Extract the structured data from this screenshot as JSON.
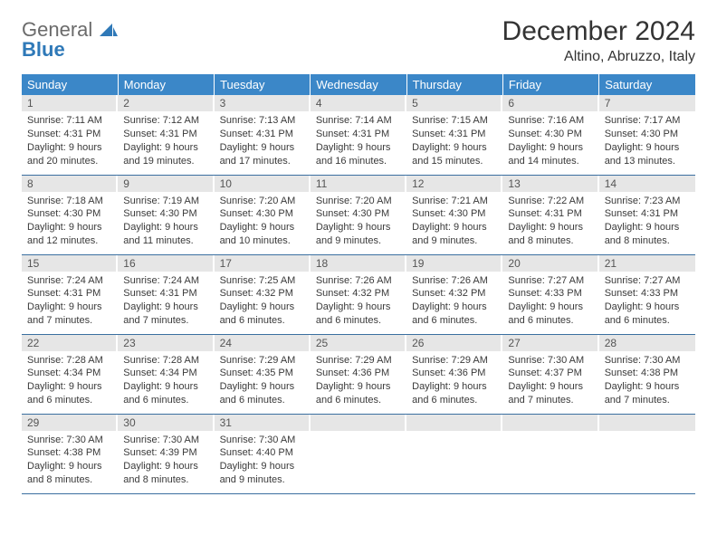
{
  "logo": {
    "line1": "General",
    "line2": "Blue"
  },
  "title": "December 2024",
  "subtitle": "Altino, Abruzzo, Italy",
  "colors": {
    "header_bg": "#3b87c8",
    "header_text": "#ffffff",
    "daynum_bg": "#e6e6e6",
    "daynum_text": "#555555",
    "body_text": "#3a3a3a",
    "row_border": "#3b6fa0",
    "logo_gray": "#6b6b6b",
    "logo_blue": "#2f79b8",
    "page_bg": "#ffffff"
  },
  "weekdays": [
    "Sunday",
    "Monday",
    "Tuesday",
    "Wednesday",
    "Thursday",
    "Friday",
    "Saturday"
  ],
  "weeks": [
    [
      {
        "n": "1",
        "sunrise": "Sunrise: 7:11 AM",
        "sunset": "Sunset: 4:31 PM",
        "day1": "Daylight: 9 hours",
        "day2": "and 20 minutes."
      },
      {
        "n": "2",
        "sunrise": "Sunrise: 7:12 AM",
        "sunset": "Sunset: 4:31 PM",
        "day1": "Daylight: 9 hours",
        "day2": "and 19 minutes."
      },
      {
        "n": "3",
        "sunrise": "Sunrise: 7:13 AM",
        "sunset": "Sunset: 4:31 PM",
        "day1": "Daylight: 9 hours",
        "day2": "and 17 minutes."
      },
      {
        "n": "4",
        "sunrise": "Sunrise: 7:14 AM",
        "sunset": "Sunset: 4:31 PM",
        "day1": "Daylight: 9 hours",
        "day2": "and 16 minutes."
      },
      {
        "n": "5",
        "sunrise": "Sunrise: 7:15 AM",
        "sunset": "Sunset: 4:31 PM",
        "day1": "Daylight: 9 hours",
        "day2": "and 15 minutes."
      },
      {
        "n": "6",
        "sunrise": "Sunrise: 7:16 AM",
        "sunset": "Sunset: 4:30 PM",
        "day1": "Daylight: 9 hours",
        "day2": "and 14 minutes."
      },
      {
        "n": "7",
        "sunrise": "Sunrise: 7:17 AM",
        "sunset": "Sunset: 4:30 PM",
        "day1": "Daylight: 9 hours",
        "day2": "and 13 minutes."
      }
    ],
    [
      {
        "n": "8",
        "sunrise": "Sunrise: 7:18 AM",
        "sunset": "Sunset: 4:30 PM",
        "day1": "Daylight: 9 hours",
        "day2": "and 12 minutes."
      },
      {
        "n": "9",
        "sunrise": "Sunrise: 7:19 AM",
        "sunset": "Sunset: 4:30 PM",
        "day1": "Daylight: 9 hours",
        "day2": "and 11 minutes."
      },
      {
        "n": "10",
        "sunrise": "Sunrise: 7:20 AM",
        "sunset": "Sunset: 4:30 PM",
        "day1": "Daylight: 9 hours",
        "day2": "and 10 minutes."
      },
      {
        "n": "11",
        "sunrise": "Sunrise: 7:20 AM",
        "sunset": "Sunset: 4:30 PM",
        "day1": "Daylight: 9 hours",
        "day2": "and 9 minutes."
      },
      {
        "n": "12",
        "sunrise": "Sunrise: 7:21 AM",
        "sunset": "Sunset: 4:30 PM",
        "day1": "Daylight: 9 hours",
        "day2": "and 9 minutes."
      },
      {
        "n": "13",
        "sunrise": "Sunrise: 7:22 AM",
        "sunset": "Sunset: 4:31 PM",
        "day1": "Daylight: 9 hours",
        "day2": "and 8 minutes."
      },
      {
        "n": "14",
        "sunrise": "Sunrise: 7:23 AM",
        "sunset": "Sunset: 4:31 PM",
        "day1": "Daylight: 9 hours",
        "day2": "and 8 minutes."
      }
    ],
    [
      {
        "n": "15",
        "sunrise": "Sunrise: 7:24 AM",
        "sunset": "Sunset: 4:31 PM",
        "day1": "Daylight: 9 hours",
        "day2": "and 7 minutes."
      },
      {
        "n": "16",
        "sunrise": "Sunrise: 7:24 AM",
        "sunset": "Sunset: 4:31 PM",
        "day1": "Daylight: 9 hours",
        "day2": "and 7 minutes."
      },
      {
        "n": "17",
        "sunrise": "Sunrise: 7:25 AM",
        "sunset": "Sunset: 4:32 PM",
        "day1": "Daylight: 9 hours",
        "day2": "and 6 minutes."
      },
      {
        "n": "18",
        "sunrise": "Sunrise: 7:26 AM",
        "sunset": "Sunset: 4:32 PM",
        "day1": "Daylight: 9 hours",
        "day2": "and 6 minutes."
      },
      {
        "n": "19",
        "sunrise": "Sunrise: 7:26 AM",
        "sunset": "Sunset: 4:32 PM",
        "day1": "Daylight: 9 hours",
        "day2": "and 6 minutes."
      },
      {
        "n": "20",
        "sunrise": "Sunrise: 7:27 AM",
        "sunset": "Sunset: 4:33 PM",
        "day1": "Daylight: 9 hours",
        "day2": "and 6 minutes."
      },
      {
        "n": "21",
        "sunrise": "Sunrise: 7:27 AM",
        "sunset": "Sunset: 4:33 PM",
        "day1": "Daylight: 9 hours",
        "day2": "and 6 minutes."
      }
    ],
    [
      {
        "n": "22",
        "sunrise": "Sunrise: 7:28 AM",
        "sunset": "Sunset: 4:34 PM",
        "day1": "Daylight: 9 hours",
        "day2": "and 6 minutes."
      },
      {
        "n": "23",
        "sunrise": "Sunrise: 7:28 AM",
        "sunset": "Sunset: 4:34 PM",
        "day1": "Daylight: 9 hours",
        "day2": "and 6 minutes."
      },
      {
        "n": "24",
        "sunrise": "Sunrise: 7:29 AM",
        "sunset": "Sunset: 4:35 PM",
        "day1": "Daylight: 9 hours",
        "day2": "and 6 minutes."
      },
      {
        "n": "25",
        "sunrise": "Sunrise: 7:29 AM",
        "sunset": "Sunset: 4:36 PM",
        "day1": "Daylight: 9 hours",
        "day2": "and 6 minutes."
      },
      {
        "n": "26",
        "sunrise": "Sunrise: 7:29 AM",
        "sunset": "Sunset: 4:36 PM",
        "day1": "Daylight: 9 hours",
        "day2": "and 6 minutes."
      },
      {
        "n": "27",
        "sunrise": "Sunrise: 7:30 AM",
        "sunset": "Sunset: 4:37 PM",
        "day1": "Daylight: 9 hours",
        "day2": "and 7 minutes."
      },
      {
        "n": "28",
        "sunrise": "Sunrise: 7:30 AM",
        "sunset": "Sunset: 4:38 PM",
        "day1": "Daylight: 9 hours",
        "day2": "and 7 minutes."
      }
    ],
    [
      {
        "n": "29",
        "sunrise": "Sunrise: 7:30 AM",
        "sunset": "Sunset: 4:38 PM",
        "day1": "Daylight: 9 hours",
        "day2": "and 8 minutes."
      },
      {
        "n": "30",
        "sunrise": "Sunrise: 7:30 AM",
        "sunset": "Sunset: 4:39 PM",
        "day1": "Daylight: 9 hours",
        "day2": "and 8 minutes."
      },
      {
        "n": "31",
        "sunrise": "Sunrise: 7:30 AM",
        "sunset": "Sunset: 4:40 PM",
        "day1": "Daylight: 9 hours",
        "day2": "and 9 minutes."
      },
      null,
      null,
      null,
      null
    ]
  ]
}
